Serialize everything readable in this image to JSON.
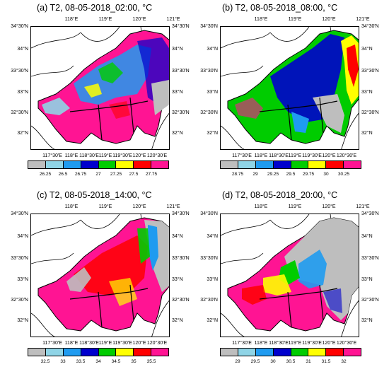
{
  "palette": [
    "#bebebe",
    "#8fd4e6",
    "#1f9bf0",
    "#0000cd",
    "#00cc00",
    "#ffff00",
    "#ff0000",
    "#ff1493"
  ],
  "panels": [
    {
      "title": "(a) T2, 08-05-2018_02:00, °C",
      "top_ticks": [
        "118°E",
        "119°E",
        "120°E",
        "121°E"
      ],
      "bottom_ticks": [
        "117°30′E",
        "118°E",
        "118°30′E",
        "119°E",
        "119°30′E",
        "120°E",
        "120°30′E"
      ],
      "left_ticks": [
        "34°30′N",
        "34°N",
        "33°30′N",
        "33°N",
        "32°30′N",
        "32°N"
      ],
      "right_ticks": [
        "34°30′N",
        "34°N",
        "33°30′N",
        "33°N",
        "32°30′N",
        "32°N"
      ],
      "colorbar_labels": [
        "26.25",
        "26.5",
        "26.75",
        "27",
        "27.25",
        "27.5",
        "27.75"
      ]
    },
    {
      "title": "(b) T2, 08-05-2018_08:00, °C",
      "top_ticks": [
        "118°E",
        "119°E",
        "120°E",
        "121°E"
      ],
      "bottom_ticks": [
        "117°30′E",
        "118°E",
        "118°30′E",
        "119°E",
        "119°30′E",
        "120°E",
        "120°30′E"
      ],
      "left_ticks": [
        "34°30′N",
        "34°N",
        "33°30′N",
        "33°N",
        "32°30′N",
        "32°N"
      ],
      "right_ticks": [
        "34°30′N",
        "34°N",
        "33°30′N",
        "33°N",
        "32°30′N",
        "32°N"
      ],
      "colorbar_labels": [
        "28.75",
        "29",
        "29.25",
        "29.5",
        "29.75",
        "30",
        "30.25"
      ]
    },
    {
      "title": "(c) T2, 08-05-2018_14:00, °C",
      "top_ticks": [
        "118°E",
        "119°E",
        "120°E",
        "121°E"
      ],
      "bottom_ticks": [
        "117°30′E",
        "118°E",
        "118°30′E",
        "119°E",
        "119°30′E",
        "120°E",
        "120°30′E"
      ],
      "left_ticks": [
        "34°30′N",
        "34°N",
        "33°30′N",
        "33°N",
        "32°30′N",
        "32°N"
      ],
      "right_ticks": [
        "34°30′N",
        "34°N",
        "33°30′N",
        "33°N",
        "32°30′N",
        "32°N"
      ],
      "colorbar_labels": [
        "32.5",
        "33",
        "33.5",
        "34",
        "34.5",
        "35",
        "35.5"
      ]
    },
    {
      "title": "(d) T2, 08-05-2018_20:00, °C",
      "top_ticks": [
        "118°E",
        "119°E",
        "120°E",
        "121°E"
      ],
      "bottom_ticks": [
        "117°30′E",
        "118°E",
        "118°30′E",
        "119°E",
        "119°30′E",
        "120°E",
        "120°30′E"
      ],
      "left_ticks": [
        "34°30′N",
        "34°N",
        "33°30′N",
        "33°N",
        "32°30′N",
        "32°N"
      ],
      "right_ticks": [
        "34°30′N",
        "34°N",
        "33°30′N",
        "33°N",
        "32°30′N",
        "32°N"
      ],
      "colorbar_labels": [
        "29",
        "29.5",
        "30",
        "30.5",
        "31",
        "31.5",
        "32"
      ]
    }
  ]
}
